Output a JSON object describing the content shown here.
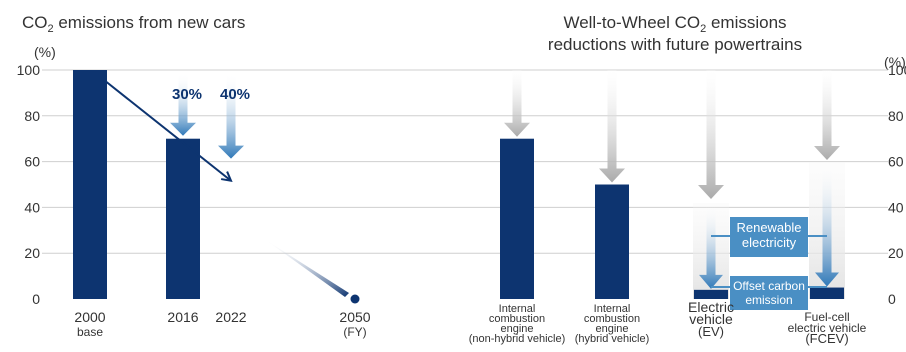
{
  "chart_data": [
    {
      "type": "bar",
      "title": "CO₂ emissions from new cars",
      "title_parts": [
        "CO",
        "2",
        " emissions from new cars"
      ],
      "yunit": "(%)",
      "yticks": [
        0,
        20,
        40,
        60,
        80,
        100
      ],
      "ylim": [
        0,
        100
      ],
      "grid": true,
      "categories": [
        {
          "label": "2000",
          "sub": "base",
          "value": 100
        },
        {
          "label": "2016",
          "sub": "",
          "value": 70
        },
        {
          "label": "2022",
          "sub": "",
          "value": null
        },
        {
          "label": "2050",
          "sub": "(FY)",
          "value": null
        }
      ],
      "reduction_labels": [
        {
          "text": "30%",
          "category": "2016",
          "arrow_from": 100,
          "arrow_to": 70
        },
        {
          "text": "40%",
          "category": "2022",
          "arrow_from": 100,
          "arrow_to": 60
        }
      ],
      "trend_line": [
        {
          "category": "2000",
          "value": 100
        },
        {
          "category": "2022",
          "value": 56
        }
      ],
      "trend_projection": [
        {
          "category": "2022",
          "value": 28
        },
        {
          "category": "2050",
          "value": 0
        }
      ]
    },
    {
      "type": "bar",
      "title": "Well-to-Wheel CO₂ emissions reductions with future powertrains",
      "title_line1_parts": [
        "Well-to-Wheel CO",
        "2",
        " emissions"
      ],
      "title_line2": "reductions with future powertrains",
      "yunit": "(%)",
      "yticks": [
        0,
        20,
        40,
        60,
        80,
        100
      ],
      "ylim": [
        0,
        100
      ],
      "categories": [
        {
          "lines": [
            "Internal",
            "combustion",
            "engine",
            "(non-hybrid vehicle)"
          ],
          "value": 70
        },
        {
          "lines": [
            "Internal",
            "combustion",
            "engine",
            "(hybrid vehicle)"
          ],
          "value": 50
        },
        {
          "lines": [
            "Electric",
            "vehicle",
            "(EV)"
          ],
          "value": 4
        },
        {
          "lines": [
            "Fuel-cell",
            "electric vehicle",
            "(FCEV)"
          ],
          "value": 5
        }
      ],
      "annotations": [
        {
          "text_lines": [
            "Renewable",
            "electricity"
          ]
        },
        {
          "text_lines": [
            "Offset carbon",
            "emission"
          ]
        }
      ]
    }
  ],
  "colors": {
    "bar": "#0d3470",
    "grid": "#cfcfcf",
    "text": "#333333",
    "label_blue": "#0d3470",
    "box_fill": "#4a8fc4",
    "gray_arrow": "#b3b3b3"
  }
}
